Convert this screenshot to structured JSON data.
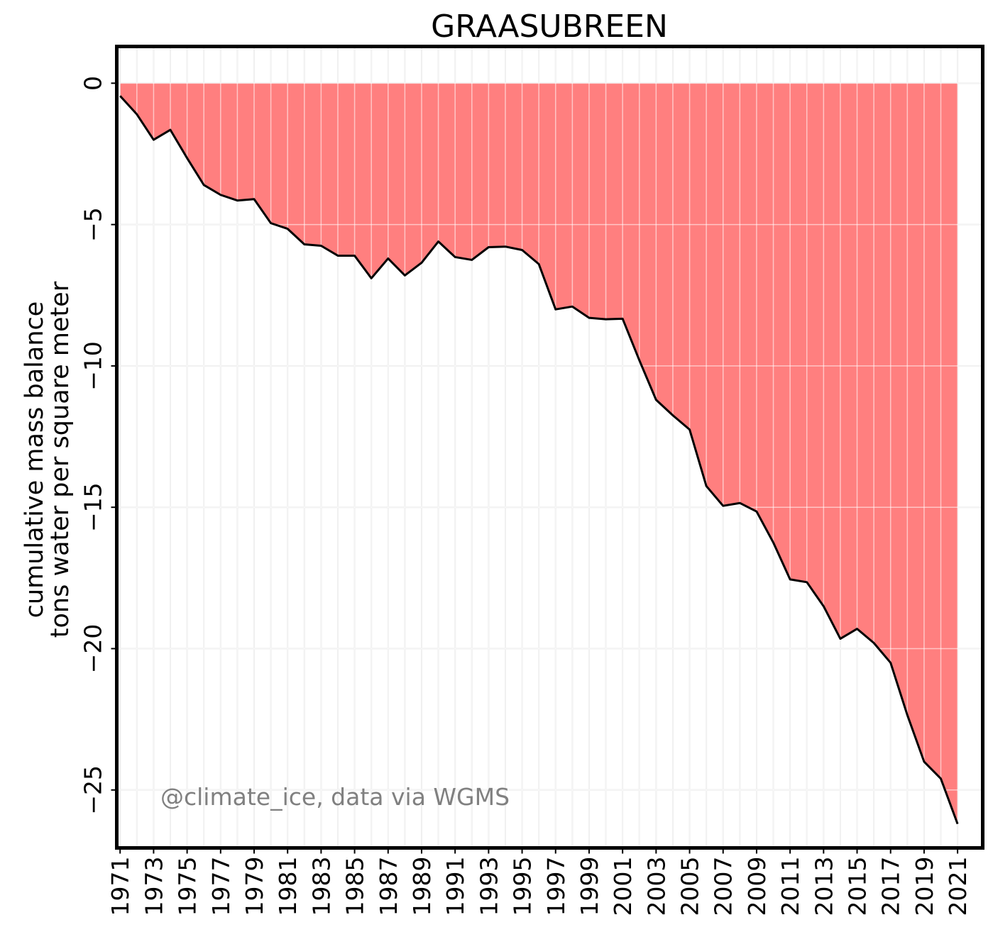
{
  "chart_data": {
    "type": "area",
    "title": "GRAASUBREEN",
    "ylabel_lines": [
      "cumulative mass balance",
      "tons water per square meter"
    ],
    "xlabel": "",
    "x": [
      1971,
      1972,
      1973,
      1974,
      1975,
      1976,
      1977,
      1978,
      1979,
      1980,
      1981,
      1982,
      1983,
      1984,
      1985,
      1986,
      1987,
      1988,
      1989,
      1990,
      1991,
      1992,
      1993,
      1994,
      1995,
      1996,
      1997,
      1998,
      1999,
      2000,
      2001,
      2002,
      2003,
      2004,
      2005,
      2006,
      2007,
      2008,
      2009,
      2010,
      2011,
      2012,
      2013,
      2014,
      2015,
      2016,
      2017,
      2018,
      2019,
      2020,
      2021
    ],
    "values": [
      -0.45,
      -1.1,
      -2.0,
      -1.65,
      -2.65,
      -3.6,
      -3.95,
      -4.15,
      -4.1,
      -4.95,
      -5.15,
      -5.7,
      -5.75,
      -6.1,
      -6.1,
      -6.9,
      -6.2,
      -6.8,
      -6.35,
      -5.6,
      -6.15,
      -6.25,
      -5.8,
      -5.78,
      -5.9,
      -6.4,
      -8.0,
      -7.9,
      -8.3,
      -8.35,
      -8.33,
      -9.8,
      -11.2,
      -11.75,
      -12.25,
      -14.25,
      -14.95,
      -14.85,
      -15.15,
      -16.25,
      -17.55,
      -17.65,
      -18.5,
      -19.65,
      -19.3,
      -19.8,
      -20.5,
      -22.35,
      -24.0,
      -24.6,
      -26.2
    ],
    "xticks": [
      1971,
      1973,
      1975,
      1977,
      1979,
      1981,
      1983,
      1985,
      1987,
      1989,
      1991,
      1993,
      1995,
      1997,
      1999,
      2001,
      2003,
      2005,
      2007,
      2009,
      2011,
      2013,
      2015,
      2017,
      2019,
      2021
    ],
    "yticks": [
      0,
      -5,
      -10,
      -15,
      -20,
      -25
    ],
    "ytick_labels": [
      "0",
      "−5",
      "−10",
      "−15",
      "−20",
      "−25"
    ],
    "xlim": [
      1970.8,
      2022.5
    ],
    "ylim": [
      -27.05,
      1.3
    ],
    "grid": true,
    "fill_color": "#ff7f7f",
    "line_color": "#000000",
    "grid_color": "#e6e6e6",
    "watermark": "@climate_ice, data via WGMS"
  }
}
